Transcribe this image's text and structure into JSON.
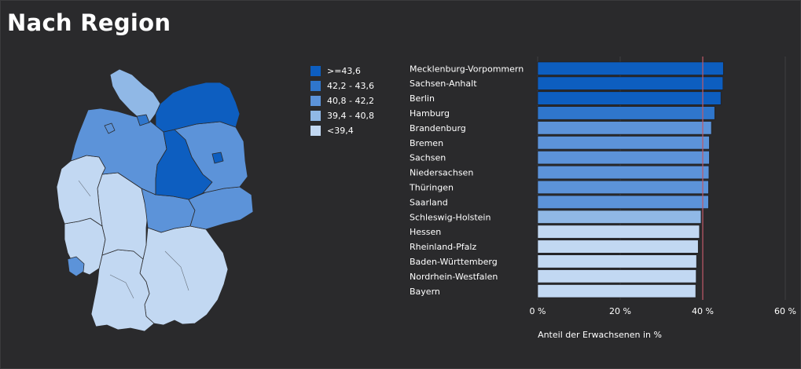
{
  "title": "Nach Region",
  "colors": {
    "background": "#2a2a2c",
    "c1": "#0d5ec0",
    "c2": "#2f76cc",
    "c3": "#5c93d9",
    "c4": "#90b8e6",
    "c5": "#c2d8f2",
    "reference_line": "#c05a68"
  },
  "legend": [
    {
      "label": ">=43,6",
      "color": "#0d5ec0"
    },
    {
      "label": "42,2 - 43,6",
      "color": "#2f76cc"
    },
    {
      "label": "40,8 - 42,2",
      "color": "#5c93d9"
    },
    {
      "label": "39,4 - 40,8",
      "color": "#90b8e6"
    },
    {
      "label": "<39,4",
      "color": "#c2d8f2"
    }
  ],
  "chart_data": {
    "type": "bar",
    "orientation": "horizontal",
    "categories": [
      "Mecklenburg-Vorpommern",
      "Sachsen-Anhalt",
      "Berlin",
      "Hamburg",
      "Brandenburg",
      "Bremen",
      "Sachsen",
      "Niedersachsen",
      "Thüringen",
      "Saarland",
      "Schleswig-Holstein",
      "Hessen",
      "Rheinland-Pfalz",
      "Baden-Württemberg",
      "Nordrhein-Westfalen",
      "Bayern"
    ],
    "values": [
      45.0,
      44.9,
      44.4,
      42.9,
      42.1,
      41.6,
      41.6,
      41.5,
      41.4,
      41.4,
      39.6,
      39.2,
      38.9,
      38.5,
      38.4,
      38.3
    ],
    "colors": [
      "#0d5ec0",
      "#0d5ec0",
      "#0d5ec0",
      "#2f76cc",
      "#5c93d9",
      "#5c93d9",
      "#5c93d9",
      "#5c93d9",
      "#5c93d9",
      "#5c93d9",
      "#90b8e6",
      "#c2d8f2",
      "#c2d8f2",
      "#c2d8f2",
      "#c2d8f2",
      "#c2d8f2"
    ],
    "xlim": [
      0,
      60
    ],
    "xticks": [
      "0 %",
      "20 %",
      "40 %",
      "60 %"
    ],
    "xlabel": "Anteil der Erwachsenen in %",
    "reference_value": 40.0
  }
}
